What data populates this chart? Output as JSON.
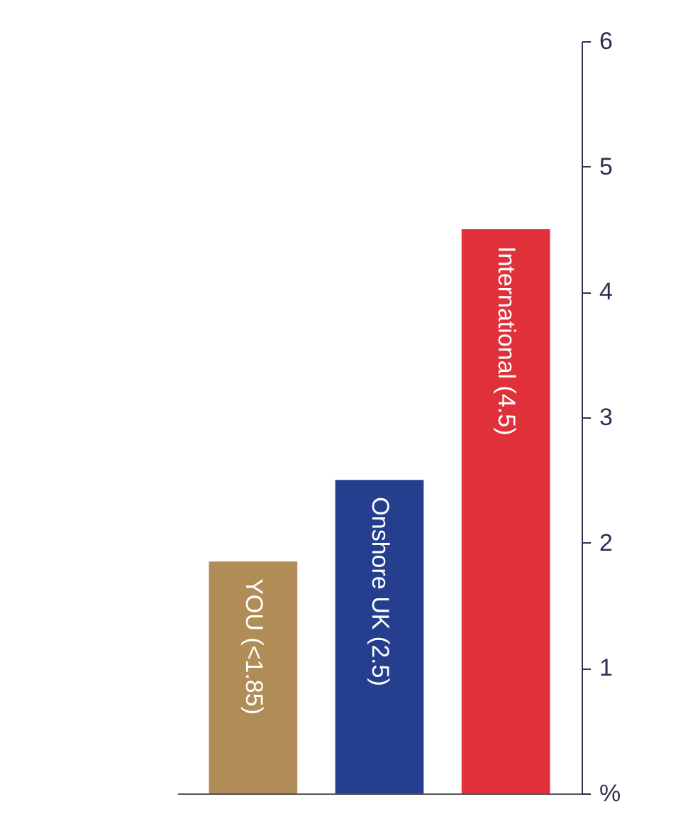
{
  "chart_data": {
    "type": "bar",
    "categories": [
      null,
      null,
      null
    ],
    "values": [
      1.85,
      2.5,
      4.5
    ],
    "colors": [
      "#b08d57",
      "#253f8e",
      "#e0303a"
    ],
    "value_labels": [
      "YOU (<1.85)",
      "Onshore UK (2.5)",
      "International (4.5)"
    ],
    "ylim": [
      0,
      6
    ],
    "yticks": [
      {
        "value": 0,
        "label": "%"
      },
      1,
      2,
      3,
      4,
      5,
      6
    ],
    "tick_labels": "y",
    "grid": false
  }
}
